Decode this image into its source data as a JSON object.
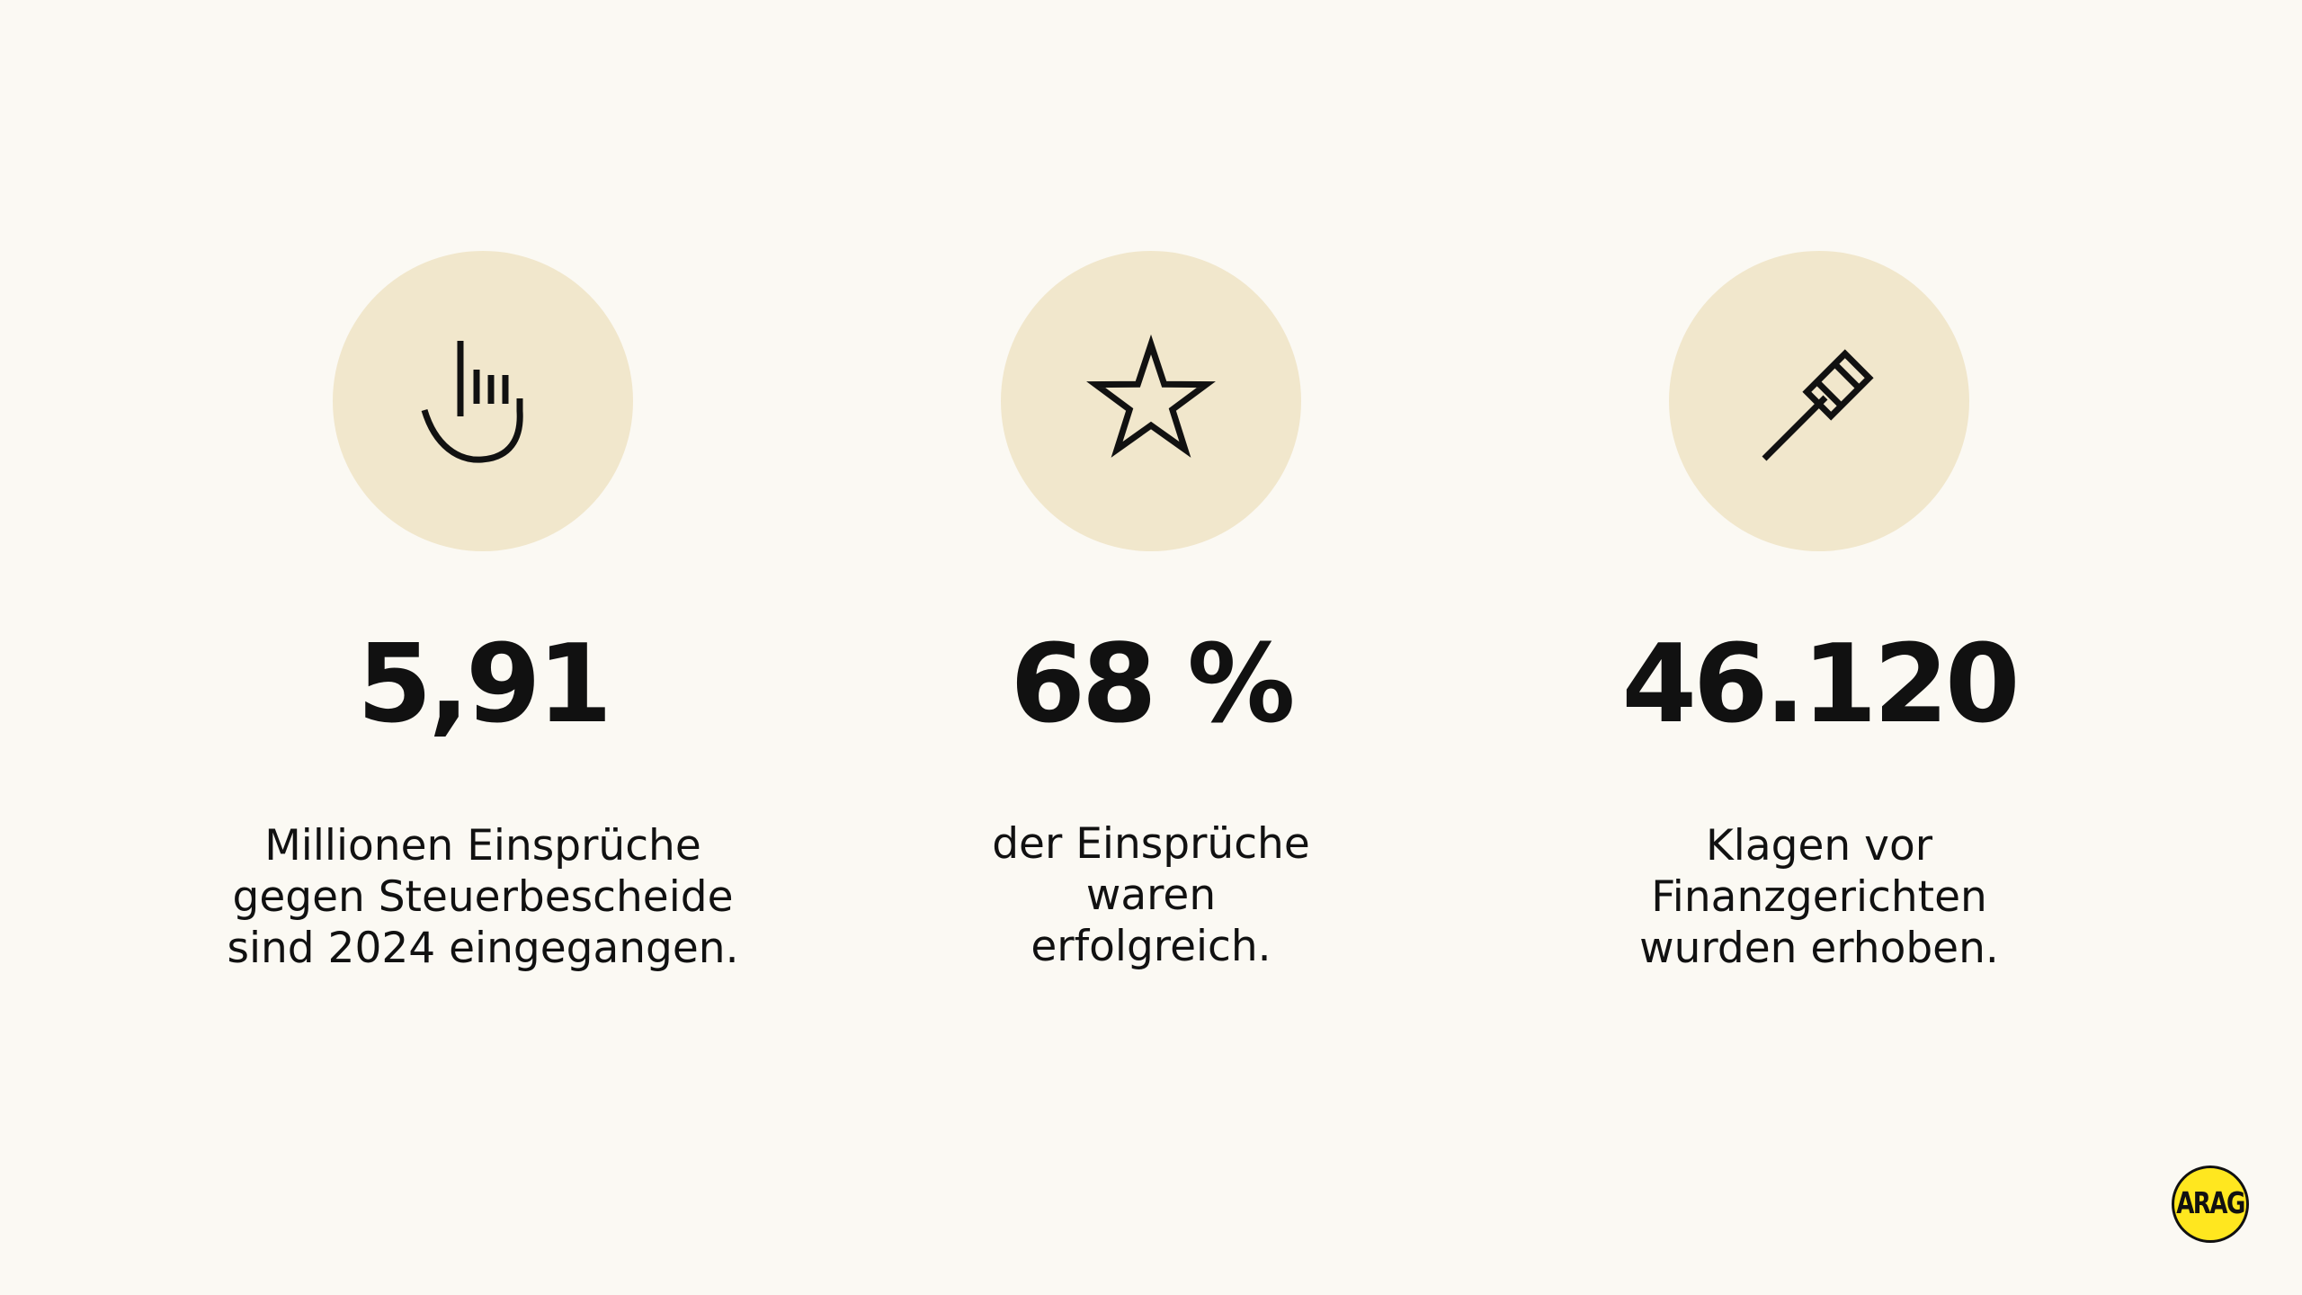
{
  "stats": [
    {
      "icon": "pointing-hand-icon",
      "value": "5,91",
      "caption_lines": [
        "Millionen Einsprüche",
        "gegen Steuerbescheide",
        "sind 2024 eingegangen."
      ]
    },
    {
      "icon": "star-icon",
      "value": "68 %",
      "caption_lines": [
        "der Einsprüche",
        "waren",
        "erfolgreich."
      ]
    },
    {
      "icon": "gavel-icon",
      "value": "46.120",
      "caption_lines": [
        "Klagen vor",
        "Finanzgerichten",
        "wurden erhoben."
      ]
    }
  ],
  "logo": {
    "text": "ARAG",
    "color": "#FFE71F"
  },
  "colors": {
    "background": "#FBF9F3",
    "icon_circle": "#F1E7CC",
    "text": "#111111"
  }
}
